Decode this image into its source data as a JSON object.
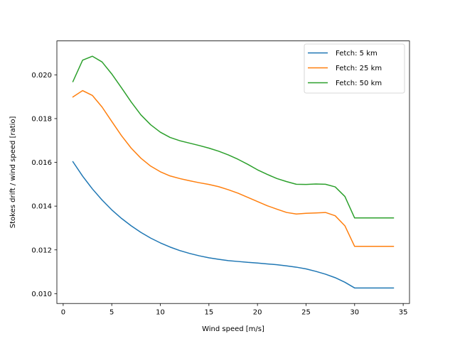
{
  "chart_data": {
    "type": "line",
    "title": "",
    "xlabel": "Wind speed  [m/s]",
    "ylabel": "Stokes drift / wind speed  [ratio]",
    "xlim": [
      -0.65,
      35.65
    ],
    "ylim": [
      0.00955,
      0.02155
    ],
    "xticks": [
      0,
      5,
      10,
      15,
      20,
      25,
      30,
      35
    ],
    "xtick_labels": [
      "0",
      "5",
      "10",
      "15",
      "20",
      "25",
      "30",
      "35"
    ],
    "yticks": [
      0.01,
      0.012,
      0.014,
      0.016,
      0.018,
      0.02
    ],
    "ytick_labels": [
      "0.010",
      "0.012",
      "0.014",
      "0.016",
      "0.018",
      "0.020"
    ],
    "grid": false,
    "legend_position": "top-right",
    "x": [
      1,
      2,
      3,
      4,
      5,
      6,
      7,
      8,
      9,
      10,
      11,
      12,
      13,
      14,
      15,
      16,
      17,
      18,
      19,
      20,
      21,
      22,
      23,
      24,
      25,
      26,
      27,
      28,
      29,
      30,
      31,
      32,
      33,
      34
    ],
    "series": [
      {
        "name": "Fetch: 5 km",
        "color": "#1f77b4",
        "values": [
          0.01603,
          0.01537,
          0.01479,
          0.01428,
          0.01383,
          0.01344,
          0.0131,
          0.0128,
          0.01254,
          0.01232,
          0.01213,
          0.01197,
          0.01184,
          0.01173,
          0.01164,
          0.01157,
          0.01151,
          0.01147,
          0.01143,
          0.0114,
          0.01136,
          0.01132,
          0.01127,
          0.01121,
          0.01113,
          0.01102,
          0.01089,
          0.01073,
          0.01052,
          0.01026,
          0.01026,
          0.01026,
          0.01026,
          0.01026
        ]
      },
      {
        "name": "Fetch: 25 km",
        "color": "#ff7f0e",
        "values": [
          0.01899,
          0.01928,
          0.01906,
          0.01853,
          0.01787,
          0.01722,
          0.01665,
          0.01619,
          0.01583,
          0.01557,
          0.01538,
          0.01526,
          0.01516,
          0.01507,
          0.01499,
          0.01489,
          0.01475,
          0.01459,
          0.0144,
          0.01421,
          0.01402,
          0.01386,
          0.01371,
          0.01364,
          0.01367,
          0.01369,
          0.01371,
          0.01356,
          0.0131,
          0.01216,
          0.01216,
          0.01216,
          0.01216,
          0.01216
        ]
      },
      {
        "name": "Fetch: 50 km",
        "color": "#2ca02c",
        "values": [
          0.01969,
          0.02067,
          0.02085,
          0.02059,
          0.02004,
          0.01941,
          0.01876,
          0.01817,
          0.01772,
          0.01738,
          0.01714,
          0.01699,
          0.01688,
          0.01677,
          0.01665,
          0.01651,
          0.01634,
          0.01614,
          0.01591,
          0.01566,
          0.01545,
          0.01526,
          0.01512,
          0.015,
          0.01499,
          0.01501,
          0.015,
          0.01488,
          0.01444,
          0.01346,
          0.01346,
          0.01346,
          0.01346,
          0.01346
        ]
      }
    ]
  }
}
